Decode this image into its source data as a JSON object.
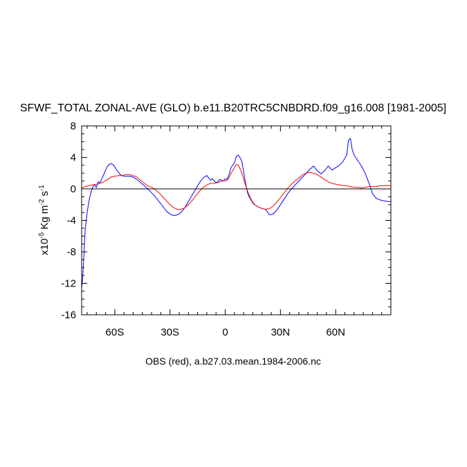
{
  "chart_data": {
    "type": "line",
    "title": "SFWF_TOTAL ZONAL-AVE (GLO) b.e11.B20TRC5CNBDRD.f09_g16.008 [1981-2005]",
    "ylabel": {
      "base": "x10",
      "exp": "-5",
      "unit1": " Kg m",
      "exp2": "-2",
      "unit2": " s",
      "exp3": "-1"
    },
    "footer": "OBS (red), a.b27.03.mean.1984-2006.nc",
    "xlim": [
      -78,
      90
    ],
    "ylim": [
      -16,
      8
    ],
    "x_ticks": [
      -60,
      -30,
      0,
      30,
      60
    ],
    "x_tick_labels": [
      "60S",
      "30S",
      "0",
      "30N",
      "60N"
    ],
    "y_ticks": [
      8,
      4,
      0,
      -4,
      -8,
      -12,
      -16
    ],
    "y_tick_labels": [
      "8",
      "4",
      "0",
      "-4",
      "-8",
      "-12",
      "-16"
    ],
    "zero_line": true,
    "series": [
      {
        "color": "#0000ff",
        "x": [
          -78,
          -77.5,
          -77,
          -76.5,
          -76,
          -75,
          -74,
          -73,
          -72,
          -71,
          -70,
          -69,
          -68,
          -67,
          -66,
          -65,
          -64,
          -63,
          -62,
          -61,
          -60,
          -59,
          -58,
          -57,
          -56,
          -55,
          -54,
          -52,
          -50,
          -48,
          -46,
          -44,
          -42,
          -40,
          -38,
          -36,
          -34,
          -32,
          -30,
          -28,
          -26,
          -24,
          -22,
          -20,
          -18,
          -16,
          -14,
          -12,
          -10,
          -8,
          -7,
          -6,
          -5,
          -4,
          -3,
          -2,
          -1,
          0,
          1,
          2,
          3,
          4,
          5,
          6,
          7,
          8,
          9,
          10,
          11,
          12,
          13,
          14,
          15,
          16,
          18,
          20,
          22,
          24,
          26,
          28,
          30,
          32,
          34,
          36,
          38,
          40,
          42,
          44,
          46,
          48,
          50,
          52,
          54,
          56,
          58,
          60,
          62,
          64,
          66,
          67,
          68,
          69,
          70,
          72,
          74,
          76,
          78,
          80,
          82,
          84,
          86,
          88,
          90
        ],
        "y": [
          -12.6,
          -11.5,
          -9.5,
          -7.0,
          -5.0,
          -3.0,
          -1.5,
          -0.5,
          0.2,
          0.5,
          0.2,
          0.9,
          0.8,
          1.3,
          1.8,
          2.4,
          2.9,
          3.1,
          3.2,
          3.1,
          2.8,
          2.4,
          2.1,
          1.8,
          1.7,
          1.6,
          1.6,
          1.6,
          1.5,
          1.2,
          0.8,
          0.4,
          0.0,
          -0.5,
          -1.0,
          -1.6,
          -2.2,
          -2.8,
          -3.2,
          -3.4,
          -3.3,
          -3.0,
          -2.4,
          -1.6,
          -0.8,
          0.0,
          0.8,
          1.4,
          1.7,
          1.1,
          1.3,
          1.0,
          0.8,
          0.9,
          1.2,
          1.1,
          1.0,
          1.3,
          1.2,
          1.8,
          2.6,
          3.0,
          3.3,
          4.1,
          4.3,
          4.0,
          3.5,
          2.2,
          0.8,
          -0.4,
          -1.0,
          -1.4,
          -1.8,
          -2.0,
          -2.3,
          -2.5,
          -2.6,
          -3.3,
          -3.2,
          -2.7,
          -2.0,
          -1.3,
          -0.6,
          0.0,
          0.5,
          1.0,
          1.5,
          2.0,
          2.5,
          2.9,
          2.3,
          1.9,
          2.3,
          2.9,
          2.4,
          2.7,
          3.0,
          3.5,
          4.3,
          6.2,
          6.4,
          5.0,
          4.3,
          3.6,
          2.9,
          2.0,
          0.8,
          -0.6,
          -1.2,
          -1.4,
          -1.5,
          -1.6,
          -1.6
        ]
      },
      {
        "color": "#ff0000",
        "x": [
          -78,
          -76,
          -74,
          -72,
          -70,
          -68,
          -66,
          -64,
          -62,
          -60,
          -58,
          -56,
          -54,
          -52,
          -50,
          -48,
          -46,
          -44,
          -42,
          -40,
          -38,
          -36,
          -34,
          -32,
          -30,
          -28,
          -26,
          -24,
          -22,
          -20,
          -18,
          -16,
          -14,
          -12,
          -10,
          -8,
          -6,
          -4,
          -2,
          0,
          1,
          2,
          3,
          4,
          5,
          6,
          7,
          8,
          9,
          10,
          11,
          12,
          13,
          14,
          15,
          16,
          18,
          20,
          22,
          24,
          26,
          28,
          30,
          32,
          34,
          36,
          38,
          40,
          42,
          44,
          46,
          48,
          50,
          52,
          54,
          56,
          58,
          60,
          62,
          64,
          66,
          68,
          70,
          72,
          74,
          76,
          78,
          80,
          82,
          84,
          86,
          88,
          90
        ],
        "y": [
          0.1,
          0.3,
          0.4,
          0.5,
          0.6,
          0.7,
          0.9,
          1.2,
          1.5,
          1.6,
          1.7,
          1.7,
          1.8,
          1.8,
          1.7,
          1.5,
          1.1,
          0.7,
          0.4,
          0.2,
          -0.1,
          -0.5,
          -1.0,
          -1.5,
          -2.0,
          -2.4,
          -2.6,
          -2.6,
          -2.4,
          -2.0,
          -1.5,
          -0.9,
          -0.3,
          0.2,
          0.5,
          0.7,
          0.7,
          0.8,
          1.0,
          1.0,
          1.1,
          1.4,
          1.9,
          2.3,
          2.7,
          3.1,
          3.0,
          2.6,
          2.0,
          1.3,
          0.5,
          -0.2,
          -0.8,
          -1.3,
          -1.7,
          -2.0,
          -2.3,
          -2.5,
          -2.6,
          -2.5,
          -2.2,
          -1.7,
          -1.1,
          -0.5,
          0.1,
          0.6,
          1.0,
          1.4,
          1.8,
          2.0,
          2.1,
          2.0,
          1.8,
          1.5,
          1.2,
          0.9,
          0.7,
          0.6,
          0.5,
          0.4,
          0.4,
          0.3,
          0.2,
          0.2,
          0.1,
          0.2,
          0.3,
          0.3,
          0.3,
          0.4,
          0.4,
          0.4,
          0.4
        ]
      }
    ]
  }
}
